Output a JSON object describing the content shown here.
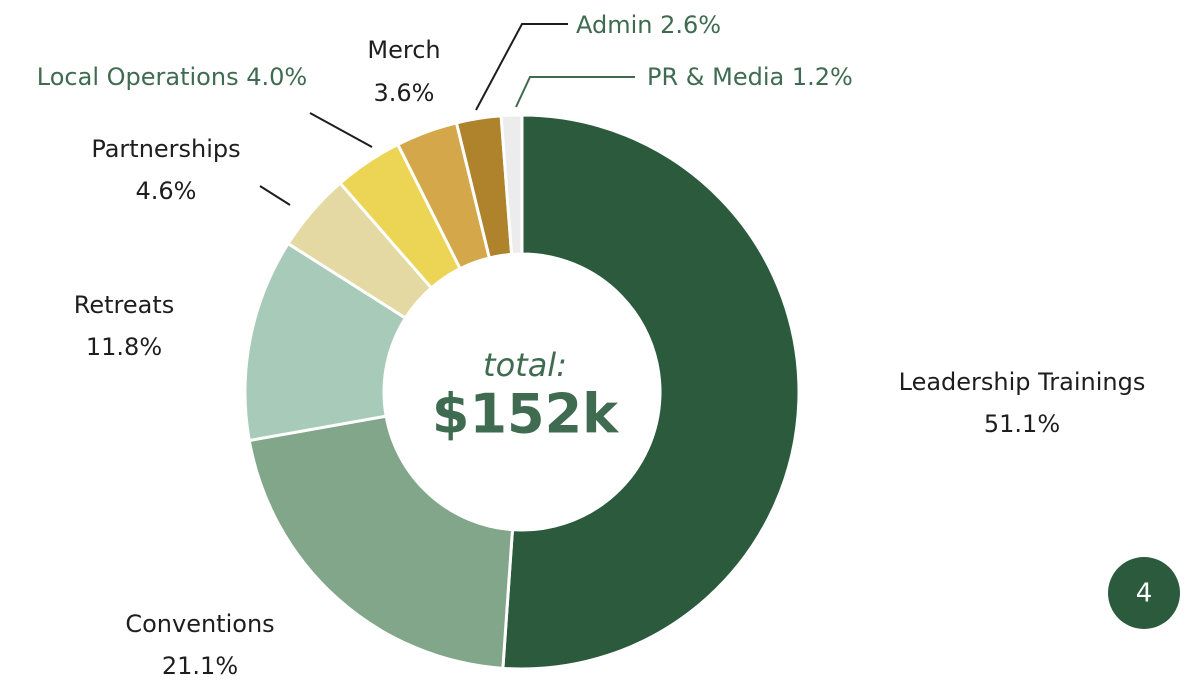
{
  "chart_data": {
    "type": "donut",
    "center_label": "total:",
    "center_value": "$152k",
    "categories": [
      "Leadership Trainings",
      "Conventions",
      "Retreats",
      "Partnerships",
      "Local Operations",
      "Merch",
      "Admin",
      "PR & Media"
    ],
    "values": [
      51.1,
      21.1,
      11.8,
      4.6,
      4.0,
      3.6,
      2.6,
      1.2
    ],
    "value_labels": [
      "51.1%",
      "21.1%",
      "11.8%",
      "4.6%",
      "4.0%",
      "3.6%",
      "2.6%",
      "1.2%"
    ],
    "colors": [
      "#2b5a3c",
      "#82a68a",
      "#a8cbb9",
      "#e5d9a3",
      "#ecd455",
      "#d4a84a",
      "#ae832c",
      "#ececec"
    ]
  },
  "page_number": "4"
}
